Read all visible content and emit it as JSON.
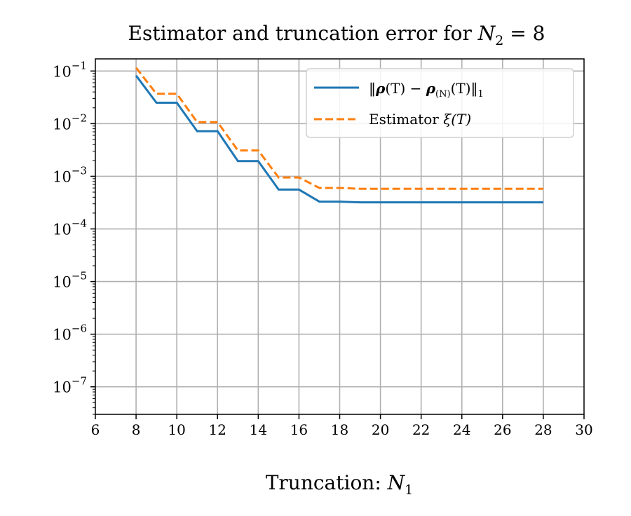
{
  "chart_data": {
    "type": "line",
    "title_text": "Estimator and truncation error for ",
    "title_var": "N",
    "title_sub": "2",
    "title_rest": " = 8",
    "xlabel_text": "Truncation: ",
    "xlabel_var": "N",
    "xlabel_sub": "1",
    "x_scale": "linear",
    "y_scale": "log",
    "xlim": [
      6,
      30
    ],
    "ylim": [
      3e-08,
      0.17
    ],
    "x_ticks": [
      6,
      8,
      10,
      12,
      14,
      16,
      18,
      20,
      22,
      24,
      26,
      28,
      30
    ],
    "x_tick_labels": [
      "6",
      "8",
      "10",
      "12",
      "14",
      "16",
      "18",
      "20",
      "22",
      "24",
      "26",
      "28",
      "30"
    ],
    "y_ticks": [
      0.1,
      0.01,
      0.001,
      0.0001,
      1e-05,
      1e-06,
      1e-07
    ],
    "y_tick_exponents": [
      "−1",
      "−2",
      "−3",
      "−4",
      "−5",
      "−6",
      "−7"
    ],
    "y_tick_base": "10",
    "grid": true,
    "legend_position": "top-right",
    "x": [
      8,
      9,
      10,
      11,
      12,
      13,
      14,
      15,
      16,
      17,
      18,
      19,
      20,
      21,
      22,
      23,
      24,
      25,
      26,
      27,
      28
    ],
    "series": [
      {
        "name": "‖ρ(T) − ρ(N)(T)‖1",
        "color": "#1f77b4",
        "style": "solid",
        "values": [
          0.082,
          0.025,
          0.025,
          0.0072,
          0.0072,
          0.00195,
          0.00195,
          0.00056,
          0.00056,
          0.00033,
          0.00033,
          0.00032,
          0.00032,
          0.00032,
          0.00032,
          0.00032,
          0.00032,
          0.00032,
          0.00032,
          0.00032,
          0.00032
        ]
      },
      {
        "name": "Estimator ξ(T)",
        "color": "#ff7f0e",
        "style": "dashed",
        "values": [
          0.115,
          0.037,
          0.037,
          0.0107,
          0.0107,
          0.0031,
          0.0031,
          0.00095,
          0.00095,
          0.0006,
          0.0006,
          0.00058,
          0.00058,
          0.00058,
          0.00058,
          0.00058,
          0.00058,
          0.00058,
          0.00058,
          0.00058,
          0.00058
        ]
      }
    ],
    "legend": {
      "entry1_norm_open": "‖",
      "entry1_rho": "ρ",
      "entry1_t1": "(T) − ",
      "entry1_rho2": "ρ",
      "entry1_sub": "(N)",
      "entry1_t2": "(T)",
      "entry1_norm_close": "‖",
      "entry1_norm_sub": "1",
      "entry2_text": "Estimator ",
      "entry2_var": "ξ(T)"
    }
  }
}
